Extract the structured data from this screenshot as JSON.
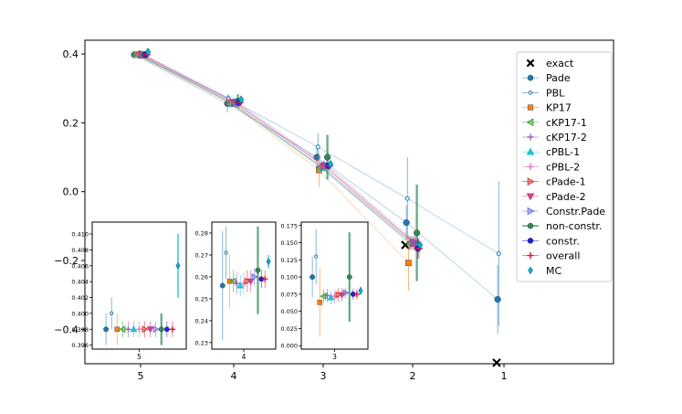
{
  "chart_data": {
    "type": "scatter",
    "title": "",
    "xlabel": "",
    "ylabel": "",
    "x_categories": [
      "5",
      "4",
      "3",
      "2",
      "1"
    ],
    "ylim": [
      -0.5,
      0.44
    ],
    "yticks": [
      "0.4",
      "0.2",
      "0.0",
      "−0.2",
      "−0.4"
    ],
    "ytick_values": [
      0.4,
      0.2,
      0.0,
      -0.2,
      -0.4
    ],
    "legend_position": "right",
    "series": [
      {
        "name": "exact",
        "marker": "x",
        "color": "#000000",
        "points": [
          {
            "x": 2,
            "y": -0.155
          },
          {
            "x": 1,
            "y": -0.497
          }
        ]
      },
      {
        "name": "Pade",
        "marker": "circle",
        "color": "#1f77b4",
        "line": true,
        "points": [
          {
            "x": 5,
            "y": 0.398,
            "err": 0.002
          },
          {
            "x": 4,
            "y": 0.256,
            "err": 0.025
          },
          {
            "x": 3,
            "y": 0.1,
            "err": 0.03
          },
          {
            "x": 2,
            "y": -0.09,
            "err": 0.05
          },
          {
            "x": 1,
            "y": -0.313,
            "err": 0.1
          }
        ]
      },
      {
        "name": "PBL",
        "marker": "small-circle",
        "color": "#1f77b4",
        "line": true,
        "points": [
          {
            "x": 5,
            "y": 0.4,
            "err": 0.002
          },
          {
            "x": 4,
            "y": 0.271,
            "err": 0.012
          },
          {
            "x": 3,
            "y": 0.13,
            "err": 0.04
          },
          {
            "x": 2,
            "y": -0.02,
            "err": 0.12
          },
          {
            "x": 1,
            "y": -0.18,
            "err": 0.21
          }
        ]
      },
      {
        "name": "KP17",
        "marker": "square",
        "color": "#ff7f0e",
        "line": true,
        "points": [
          {
            "x": 5,
            "y": 0.398,
            "err": 0.002
          },
          {
            "x": 4,
            "y": 0.258,
            "err": 0.012
          },
          {
            "x": 3,
            "y": 0.063,
            "err": 0.05
          },
          {
            "x": 2,
            "y": -0.207,
            "err": 0.08
          }
        ]
      },
      {
        "name": "cKP17-1",
        "marker": "triangle-left",
        "color": "#2ca02c",
        "line": true,
        "points": [
          {
            "x": 5,
            "y": 0.398,
            "err": 0.001
          },
          {
            "x": 4,
            "y": 0.258,
            "err": 0.005
          },
          {
            "x": 3,
            "y": 0.072,
            "err": 0.01
          },
          {
            "x": 2,
            "y": -0.15,
            "err": 0.02
          }
        ]
      },
      {
        "name": "cKP17-2",
        "marker": "plus",
        "color": "#9467bd",
        "line": true,
        "points": [
          {
            "x": 5,
            "y": 0.398,
            "err": 0.001
          },
          {
            "x": 4,
            "y": 0.257,
            "err": 0.005
          },
          {
            "x": 3,
            "y": 0.073,
            "err": 0.01
          },
          {
            "x": 2,
            "y": -0.15,
            "err": 0.02
          }
        ]
      },
      {
        "name": "cPBL-1",
        "marker": "triangle-up",
        "color": "#17becf",
        "line": true,
        "points": [
          {
            "x": 5,
            "y": 0.398,
            "err": 0.001
          },
          {
            "x": 4,
            "y": 0.256,
            "err": 0.005
          },
          {
            "x": 3,
            "y": 0.07,
            "err": 0.01
          },
          {
            "x": 2,
            "y": -0.148,
            "err": 0.02
          }
        ]
      },
      {
        "name": "cPBL-2",
        "marker": "plus",
        "color": "#e377c2",
        "line": true,
        "points": [
          {
            "x": 5,
            "y": 0.398,
            "err": 0.001
          },
          {
            "x": 4,
            "y": 0.257,
            "err": 0.005
          },
          {
            "x": 3,
            "y": 0.072,
            "err": 0.01
          },
          {
            "x": 2,
            "y": -0.15,
            "err": 0.02
          }
        ]
      },
      {
        "name": "cPade-1",
        "marker": "triangle-right",
        "color": "#d62728",
        "line": true,
        "points": [
          {
            "x": 5,
            "y": 0.398,
            "err": 0.001
          },
          {
            "x": 4,
            "y": 0.258,
            "err": 0.005
          },
          {
            "x": 3,
            "y": 0.074,
            "err": 0.01
          },
          {
            "x": 2,
            "y": -0.149,
            "err": 0.02
          }
        ]
      },
      {
        "name": "cPade-2",
        "marker": "triangle-down",
        "color": "#c8377a",
        "line": true,
        "points": [
          {
            "x": 5,
            "y": 0.398,
            "err": 0.001
          },
          {
            "x": 4,
            "y": 0.258,
            "err": 0.005
          },
          {
            "x": 3,
            "y": 0.074,
            "err": 0.01
          },
          {
            "x": 2,
            "y": -0.15,
            "err": 0.02
          }
        ]
      },
      {
        "name": "Constr.Pade",
        "marker": "triangle-right",
        "color": "#6a6ae0",
        "line": true,
        "points": [
          {
            "x": 5,
            "y": 0.398,
            "err": 0.001
          },
          {
            "x": 4,
            "y": 0.26,
            "err": 0.004
          },
          {
            "x": 3,
            "y": 0.077,
            "err": 0.008
          },
          {
            "x": 2,
            "y": -0.148,
            "err": 0.015
          }
        ]
      },
      {
        "name": "non-constr.",
        "marker": "circle",
        "color": "#2e8b57",
        "points": [
          {
            "x": 5,
            "y": 0.398,
            "err": 0.002
          },
          {
            "x": 4,
            "y": 0.263,
            "err": 0.02
          },
          {
            "x": 3,
            "y": 0.1,
            "err": 0.065
          },
          {
            "x": 2,
            "y": -0.12,
            "err": 0.14
          }
        ]
      },
      {
        "name": "constr.",
        "marker": "circle",
        "color": "#1f1fe0",
        "points": [
          {
            "x": 5,
            "y": 0.398,
            "err": 0.001
          },
          {
            "x": 4,
            "y": 0.259,
            "err": 0.004
          },
          {
            "x": 3,
            "y": 0.075,
            "err": 0.008
          },
          {
            "x": 2,
            "y": -0.165,
            "err": 0.03
          }
        ]
      },
      {
        "name": "overall",
        "marker": "plus",
        "color": "#dc143c",
        "points": [
          {
            "x": 5,
            "y": 0.398,
            "err": 0.001
          },
          {
            "x": 4,
            "y": 0.259,
            "err": 0.004
          },
          {
            "x": 3,
            "y": 0.075,
            "err": 0.008
          },
          {
            "x": 2,
            "y": -0.165,
            "err": 0.03
          }
        ]
      },
      {
        "name": "MC",
        "marker": "diamond",
        "color": "#00bcd4",
        "points": [
          {
            "x": 5,
            "y": 0.406,
            "err": 0.004
          },
          {
            "x": 4,
            "y": 0.267,
            "err": 0.003
          },
          {
            "x": 3,
            "y": 0.08,
            "err": 0.006
          },
          {
            "x": 2,
            "y": -0.155,
            "err": 0.01
          }
        ]
      }
    ],
    "insets": [
      {
        "label": "5",
        "yticks": [
          "0.410",
          "0.408",
          "0.406",
          "0.404",
          "0.402",
          "0.400",
          "0.398",
          "0.396"
        ],
        "ylim": [
          0.3955,
          0.4115
        ]
      },
      {
        "label": "4",
        "yticks": [
          "0.28",
          "0.27",
          "0.26",
          "0.25",
          "0.24",
          "0.23"
        ],
        "ylim": [
          0.227,
          0.285
        ]
      },
      {
        "label": "3",
        "yticks": [
          "0.175",
          "0.150",
          "0.125",
          "0.100",
          "0.075",
          "0.050",
          "0.025",
          "0.000"
        ],
        "ylim": [
          -0.005,
          0.18
        ]
      }
    ]
  }
}
